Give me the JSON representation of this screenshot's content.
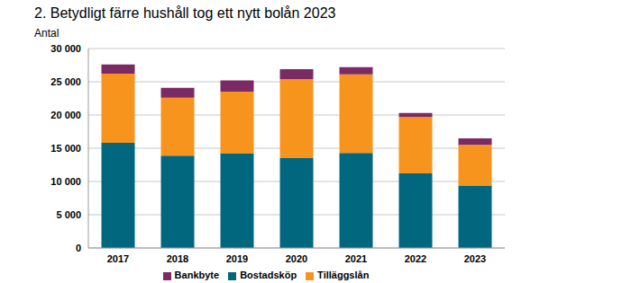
{
  "chart_data": {
    "type": "bar",
    "title": "2. Betydligt färre hushåll tog ett nytt bolån 2023",
    "subtitle": "Antal",
    "categories": [
      "2017",
      "2018",
      "2019",
      "2020",
      "2021",
      "2022",
      "2023"
    ],
    "series": [
      {
        "name": "Bostadsköp",
        "color": "#00677f",
        "values": [
          15800,
          13900,
          14200,
          13500,
          14300,
          11200,
          9400
        ]
      },
      {
        "name": "Tilläggslån",
        "color": "#f7941d",
        "values": [
          10400,
          8700,
          9300,
          11900,
          11800,
          8500,
          6100
        ]
      },
      {
        "name": "Bankbyte",
        "color": "#7b2a66",
        "values": [
          1400,
          1500,
          1700,
          1500,
          1100,
          600,
          1000
        ]
      }
    ],
    "stacked": true,
    "ylim": [
      0,
      30000
    ],
    "yticks": [
      0,
      {
        "value": 5000,
        "label": "5 000"
      },
      {
        "value": 10000,
        "label": "10 000"
      },
      {
        "value": 15000,
        "label": "15 000"
      },
      {
        "value": 20000,
        "label": "20 000"
      },
      {
        "value": 25000,
        "label": "25 000"
      },
      {
        "value": 30000,
        "label": "30 000"
      }
    ],
    "grid": true,
    "legend": "bottom"
  }
}
